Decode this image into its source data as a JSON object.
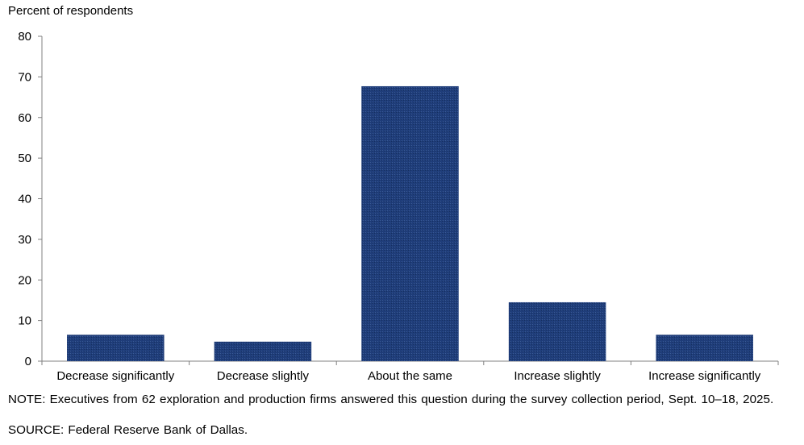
{
  "chart_data": {
    "type": "bar",
    "ylabel": "Percent of respondents",
    "categories": [
      "Decrease significantly",
      "Decrease slightly",
      "About the same",
      "Increase slightly",
      "Increase significantly"
    ],
    "series": [
      {
        "values": [
          6.5,
          4.8,
          67.7,
          14.5,
          6.5
        ]
      }
    ],
    "ylim": [
      0,
      80
    ],
    "yticks": [
      0,
      10,
      20,
      30,
      40,
      50,
      60,
      70,
      80
    ],
    "grid": false,
    "legend": "none",
    "bar_color": "#1f3d7a"
  },
  "note": "NOTE: Executives from 62 exploration and production firms answered this question during the survey collection period, Sept. 10–18, 2025.",
  "source": "SOURCE: Federal Reserve Bank of Dallas."
}
